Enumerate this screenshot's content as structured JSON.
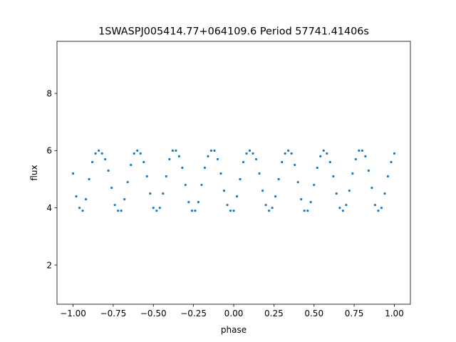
{
  "chart_data": {
    "type": "scatter",
    "title": "1SWASPJ005414.77+064109.6 Period 57741.41406s",
    "xlabel": "phase",
    "ylabel": "flux",
    "xlim": [
      -1.1,
      1.1
    ],
    "ylim": [
      0.63,
      9.82
    ],
    "xticks": [
      -1.0,
      -0.75,
      -0.5,
      -0.25,
      0.0,
      0.25,
      0.5,
      0.75,
      1.0
    ],
    "xtick_labels": [
      "−1.00",
      "−0.75",
      "−0.50",
      "−0.25",
      "0.00",
      "0.25",
      "0.50",
      "0.75",
      "1.00"
    ],
    "yticks": [
      2,
      4,
      6,
      8
    ],
    "ytick_labels": [
      "2",
      "4",
      "6",
      "8"
    ],
    "grid": false,
    "point_color": "#1f77b4",
    "series": [
      {
        "x_range": [
          -1.0,
          1.0
        ],
        "points": [
          [
            -1.0,
            5.2
          ],
          [
            -0.98,
            4.4
          ],
          [
            -0.96,
            4.0
          ],
          [
            -0.94,
            3.9
          ],
          [
            -0.92,
            4.3
          ],
          [
            -0.9,
            5.0
          ],
          [
            -0.88,
            5.6
          ],
          [
            -0.86,
            5.9
          ],
          [
            -0.84,
            6.0
          ],
          [
            -0.82,
            5.9
          ],
          [
            -0.8,
            5.7
          ],
          [
            -0.78,
            5.3
          ],
          [
            -0.76,
            4.7
          ],
          [
            -0.74,
            4.1
          ],
          [
            -0.72,
            3.9
          ],
          [
            -0.7,
            3.9
          ],
          [
            -0.68,
            4.3
          ],
          [
            -0.66,
            4.9
          ],
          [
            -0.64,
            5.5
          ],
          [
            -0.62,
            5.9
          ],
          [
            -0.6,
            6.0
          ],
          [
            -0.58,
            5.9
          ],
          [
            -0.56,
            5.6
          ],
          [
            -0.54,
            5.1
          ],
          [
            -0.52,
            4.5
          ],
          [
            -0.5,
            4.0
          ],
          [
            -0.48,
            3.9
          ],
          [
            -0.46,
            4.0
          ],
          [
            -0.44,
            4.5
          ],
          [
            -0.42,
            5.1
          ],
          [
            -0.4,
            5.7
          ],
          [
            -0.38,
            6.0
          ],
          [
            -0.36,
            6.0
          ],
          [
            -0.34,
            5.8
          ],
          [
            -0.32,
            5.4
          ],
          [
            -0.3,
            4.8
          ],
          [
            -0.28,
            4.2
          ],
          [
            -0.26,
            3.9
          ],
          [
            -0.24,
            3.9
          ],
          [
            -0.22,
            4.2
          ],
          [
            -0.2,
            4.8
          ],
          [
            -0.18,
            5.4
          ],
          [
            -0.16,
            5.8
          ],
          [
            -0.14,
            6.0
          ],
          [
            -0.12,
            6.0
          ],
          [
            -0.1,
            5.7
          ],
          [
            -0.08,
            5.2
          ],
          [
            -0.06,
            4.6
          ],
          [
            -0.04,
            4.1
          ],
          [
            -0.02,
            3.9
          ],
          [
            0.0,
            3.9
          ],
          [
            0.02,
            4.4
          ],
          [
            0.04,
            5.0
          ],
          [
            0.06,
            5.6
          ],
          [
            0.08,
            5.9
          ],
          [
            0.1,
            6.0
          ],
          [
            0.12,
            5.9
          ],
          [
            0.14,
            5.7
          ],
          [
            0.16,
            5.2
          ],
          [
            0.18,
            4.6
          ],
          [
            0.2,
            4.1
          ],
          [
            0.22,
            3.9
          ],
          [
            0.24,
            4.0
          ],
          [
            0.26,
            4.4
          ],
          [
            0.28,
            5.0
          ],
          [
            0.3,
            5.6
          ],
          [
            0.32,
            5.9
          ],
          [
            0.34,
            6.0
          ],
          [
            0.36,
            5.9
          ],
          [
            0.38,
            5.5
          ],
          [
            0.4,
            4.9
          ],
          [
            0.42,
            4.3
          ],
          [
            0.44,
            3.9
          ],
          [
            0.46,
            3.9
          ],
          [
            0.48,
            4.2
          ],
          [
            0.5,
            4.8
          ],
          [
            0.52,
            5.4
          ],
          [
            0.54,
            5.8
          ],
          [
            0.56,
            6.0
          ],
          [
            0.58,
            5.9
          ],
          [
            0.6,
            5.6
          ],
          [
            0.62,
            5.1
          ],
          [
            0.64,
            4.5
          ],
          [
            0.66,
            4.0
          ],
          [
            0.68,
            3.9
          ],
          [
            0.7,
            4.1
          ],
          [
            0.72,
            4.6
          ],
          [
            0.74,
            5.2
          ],
          [
            0.76,
            5.7
          ],
          [
            0.78,
            6.0
          ],
          [
            0.8,
            6.0
          ],
          [
            0.82,
            5.8
          ],
          [
            0.84,
            5.3
          ],
          [
            0.86,
            4.7
          ],
          [
            0.88,
            4.1
          ],
          [
            0.9,
            3.9
          ],
          [
            0.92,
            4.0
          ],
          [
            0.94,
            4.5
          ],
          [
            0.96,
            5.1
          ],
          [
            0.98,
            5.6
          ],
          [
            1.0,
            5.9
          ]
        ]
      }
    ]
  }
}
